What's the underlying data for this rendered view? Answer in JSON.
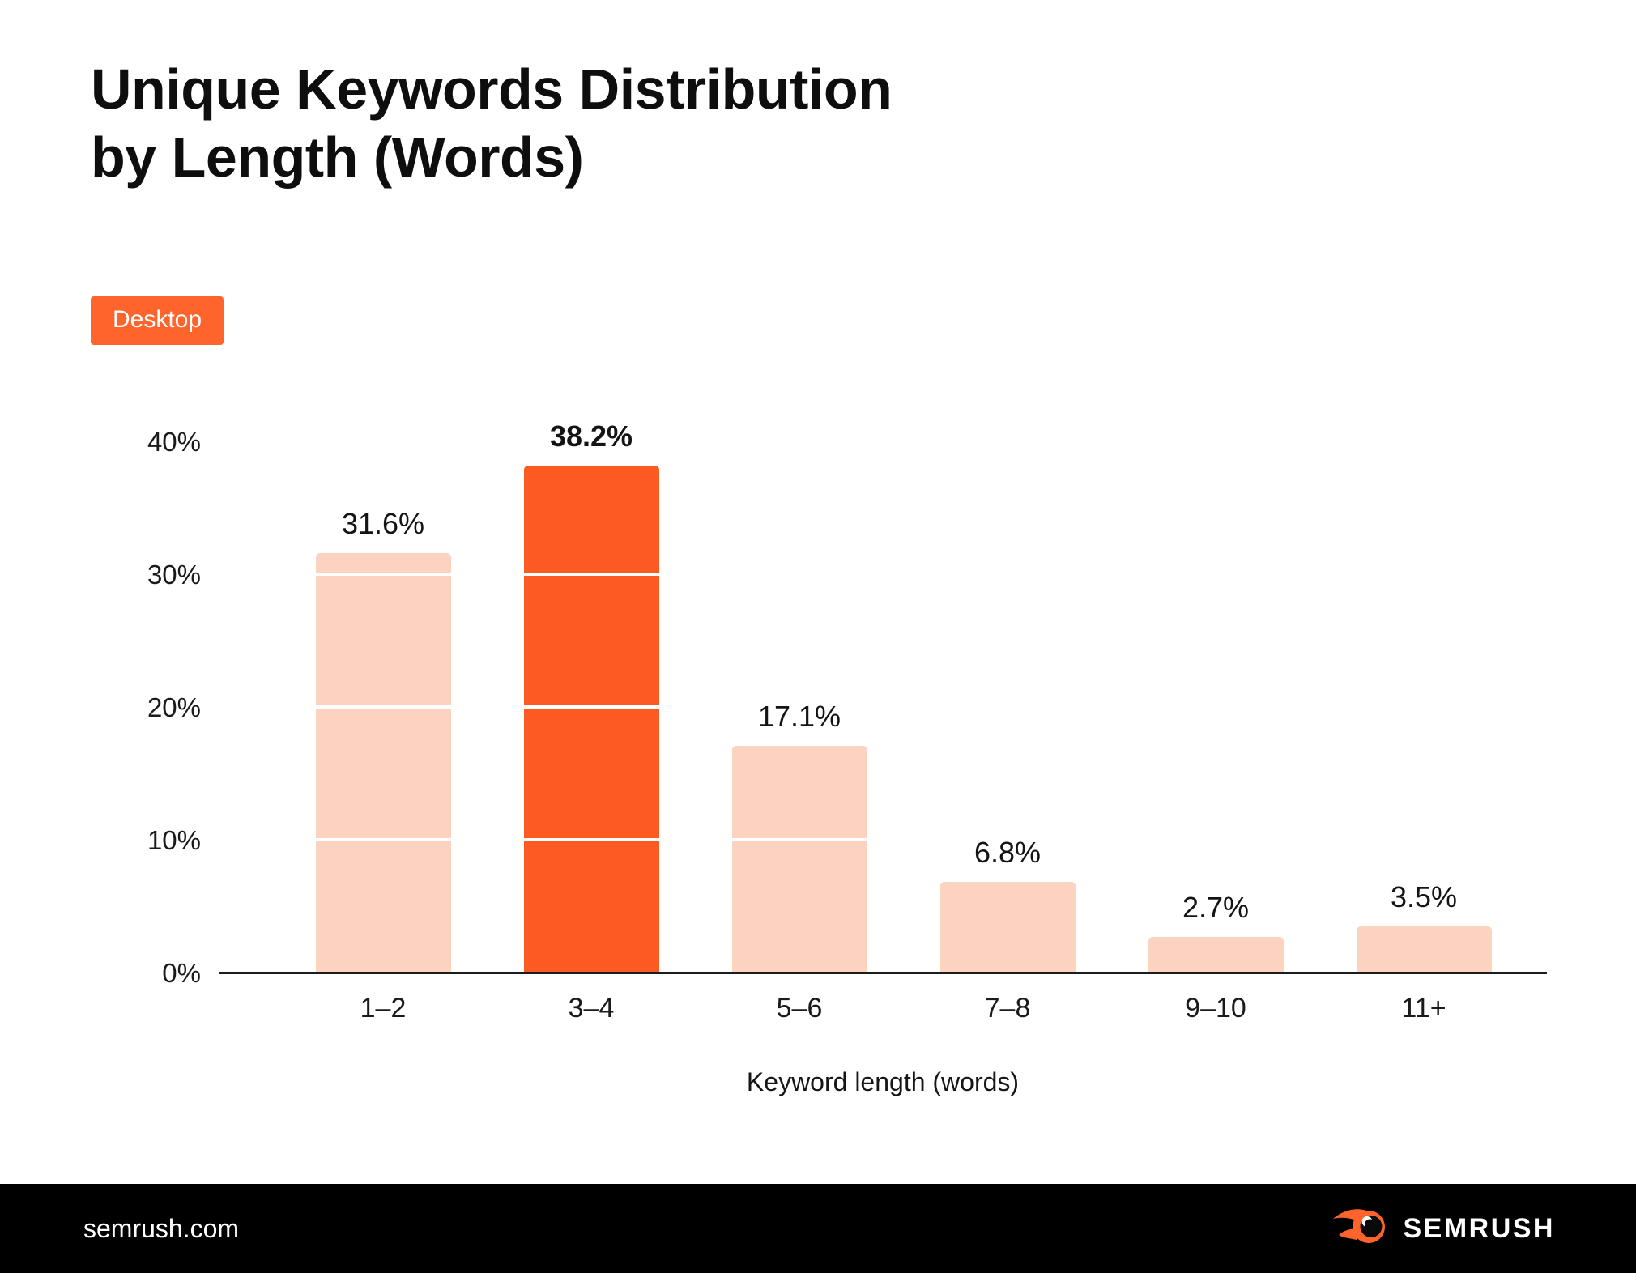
{
  "title": {
    "line1": "Unique Keywords Distribution",
    "line2": "by Length (Words)"
  },
  "badge": {
    "label": "Desktop",
    "bg": "#FF642D",
    "color": "#ffffff"
  },
  "chart_data": {
    "type": "bar",
    "title": "Unique Keywords Distribution by Length (Words)",
    "categories": [
      "1–2",
      "3–4",
      "5–6",
      "7–8",
      "9–10",
      "11+"
    ],
    "values": [
      31.6,
      38.2,
      17.1,
      6.8,
      2.7,
      3.5
    ],
    "value_labels": [
      "31.6%",
      "38.2%",
      "17.1%",
      "6.8%",
      "2.7%",
      "3.5%"
    ],
    "highlight_index": 1,
    "xlabel": "Keyword length (words)",
    "ylabel": "",
    "y_tick_values": [
      40,
      30,
      20,
      10,
      0
    ],
    "y_tick_labels": [
      "40%",
      "30%",
      "20%",
      "10%",
      "0%"
    ],
    "ylim": [
      0,
      40
    ],
    "grid": "white horizontal lines visible over bars only",
    "legend": "none",
    "bar_color": "#FCD3C1",
    "highlight_color": "#FB5B22",
    "axis_color": "#1c1c1c",
    "tick_color": "#9b9b9b"
  },
  "footer": {
    "site": "semrush.com",
    "logo_text": "SEMRUSH",
    "bg": "#000000",
    "logo_orange": "#FF642D"
  }
}
